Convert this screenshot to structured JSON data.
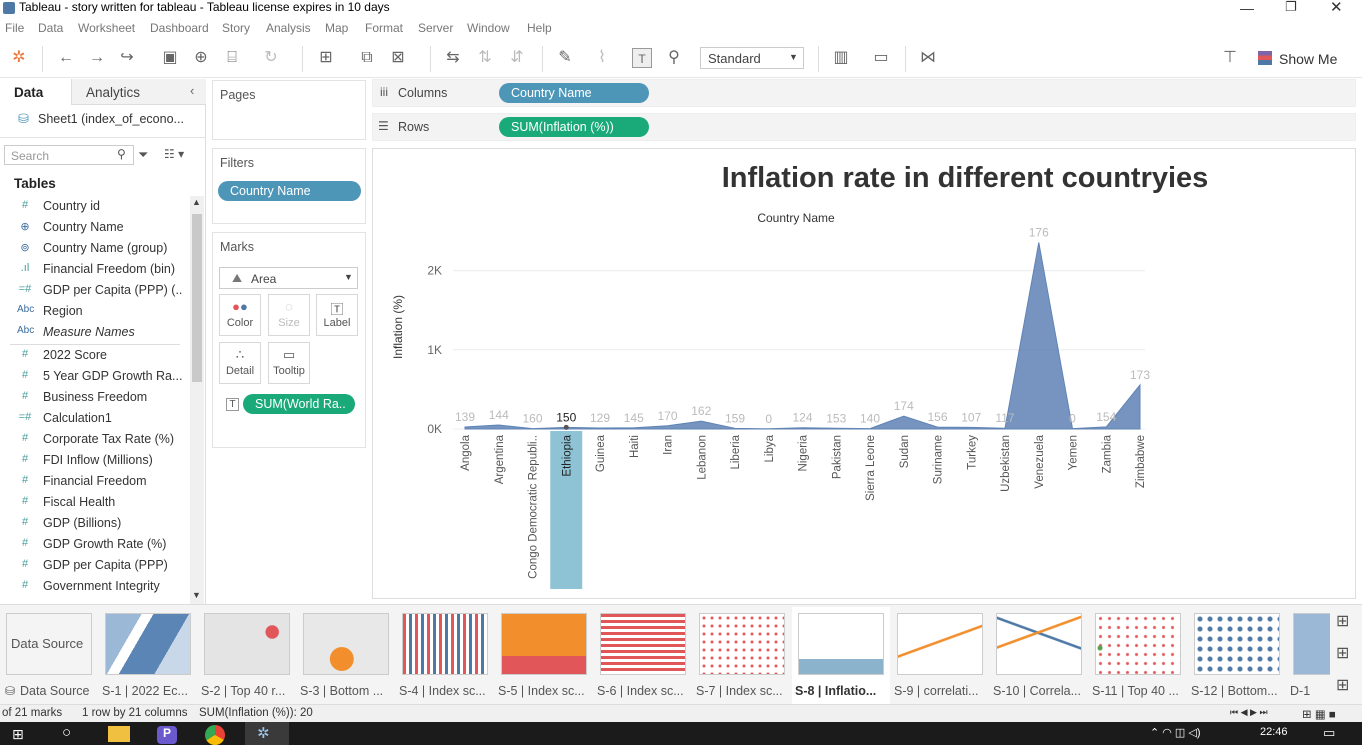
{
  "window": {
    "title": "Tableau - story written for tableau - Tableau license expires in 10 days"
  },
  "menu": [
    "File",
    "Data",
    "Worksheet",
    "Dashboard",
    "Story",
    "Analysis",
    "Map",
    "Format",
    "Server",
    "Window",
    "Help"
  ],
  "toolbar": {
    "fit_mode": "Standard",
    "show_me": "Show Me"
  },
  "left_pane": {
    "tab_data": "Data",
    "tab_analytics": "Analytics",
    "datasource": "Sheet1 (index_of_econo...",
    "search_placeholder": "Search",
    "tables_heading": "Tables",
    "fields": [
      {
        "icon": "#",
        "name": "Country id",
        "italic": false
      },
      {
        "icon": "globe",
        "name": "Country Name",
        "italic": false
      },
      {
        "icon": "group",
        "name": "Country Name (group)",
        "italic": false
      },
      {
        "icon": "bin",
        "name": "Financial Freedom (bin)",
        "italic": false
      },
      {
        "icon": "=#",
        "name": "GDP per Capita (PPP) (...",
        "italic": false
      },
      {
        "icon": "Abc",
        "name": "Region",
        "italic": false
      },
      {
        "icon": "Abc",
        "name": "Measure Names",
        "italic": true
      },
      {
        "icon": "#",
        "name": "2022 Score",
        "italic": false
      },
      {
        "icon": "#",
        "name": "5 Year GDP Growth Ra...",
        "italic": false
      },
      {
        "icon": "#",
        "name": "Business Freedom",
        "italic": false
      },
      {
        "icon": "=#",
        "name": "Calculation1",
        "italic": false
      },
      {
        "icon": "#",
        "name": "Corporate Tax Rate (%)",
        "italic": false
      },
      {
        "icon": "#",
        "name": "FDI Inflow (Millions)",
        "italic": false
      },
      {
        "icon": "#",
        "name": "Financial Freedom",
        "italic": false
      },
      {
        "icon": "#",
        "name": "Fiscal Health",
        "italic": false
      },
      {
        "icon": "#",
        "name": "GDP (Billions)",
        "italic": false
      },
      {
        "icon": "#",
        "name": "GDP Growth Rate (%)",
        "italic": false
      },
      {
        "icon": "#",
        "name": "GDP per Capita (PPP)",
        "italic": false
      },
      {
        "icon": "#",
        "name": "Government Integrity",
        "italic": false
      }
    ]
  },
  "cards": {
    "pages": "Pages",
    "filters": "Filters",
    "filter_pill": "Country Name",
    "marks": "Marks",
    "mark_type": "Area",
    "btn_color": "Color",
    "btn_size": "Size",
    "btn_label": "Label",
    "btn_detail": "Detail",
    "btn_tooltip": "Tooltip",
    "marks_pill": "SUM(World Ra.."
  },
  "shelves": {
    "columns_label": "Columns",
    "columns_pill": "Country Name",
    "rows_label": "Rows",
    "rows_pill": "SUM(Inflation (%))"
  },
  "chart_data": {
    "type": "area",
    "title": "Inflation rate in different countryies",
    "header": "Country Name",
    "ylabel": "Inflation (%)",
    "yticks": [
      "2K",
      "1K",
      "0K"
    ],
    "ylim": [
      0,
      2500
    ],
    "grid": true,
    "highlighted": "Ethiopia",
    "categories": [
      "Angola",
      "Argentina",
      "Congo Democratic Republi..",
      "Ethiopia",
      "Guinea",
      "Haiti",
      "Iran",
      "Lebanon",
      "Liberia",
      "Libya",
      "Nigeria",
      "Pakistan",
      "Sierra Leone",
      "Sudan",
      "Suriname",
      "Turkey",
      "Uzbekistan",
      "Venezuela",
      "Yemen",
      "Zambia",
      "Zimbabwe"
    ],
    "values": [
      25,
      51,
      5,
      20,
      13,
      15,
      40,
      100,
      8,
      3,
      17,
      9,
      5,
      163,
      24,
      20,
      10,
      2355,
      5,
      27,
      557
    ],
    "labels": [
      "139",
      "144",
      "160",
      "150",
      "129",
      "145",
      "170",
      "162",
      "159",
      "0",
      "124",
      "153",
      "140",
      "174",
      "156",
      "107",
      "117",
      "176",
      "0",
      "154",
      "173"
    ],
    "color": "#4f76ad"
  },
  "tabs": [
    {
      "label": "Data Source",
      "thumb": "ds"
    },
    {
      "label": "S-1 | 2022 Ec...",
      "thumb": "map"
    },
    {
      "label": "S-2 | Top 40 r...",
      "thumb": "map2"
    },
    {
      "label": "S-3 | Bottom ...",
      "thumb": "map3"
    },
    {
      "label": "S-4 | Index sc...",
      "thumb": "bars"
    },
    {
      "label": "S-5 | Index sc...",
      "thumb": "tree"
    },
    {
      "label": "S-6 | Index sc...",
      "thumb": "hbars"
    },
    {
      "label": "S-7 | Index sc...",
      "thumb": "dots"
    },
    {
      "label": "S-8 | Inflatio...",
      "thumb": "area"
    },
    {
      "label": "S-9 | correlati...",
      "thumb": "line"
    },
    {
      "label": "S-10 | Correla...",
      "thumb": "line2"
    },
    {
      "label": "S-11 | Top 40 ...",
      "thumb": "dots2"
    },
    {
      "label": "S-12 | Bottom...",
      "thumb": "dots3"
    },
    {
      "label": "D-1",
      "thumb": "map4"
    }
  ],
  "status": {
    "marks": "of 21 marks",
    "rows": "1 row by 21 columns",
    "sum": "SUM(Inflation (%)): 20"
  },
  "taskbar": {
    "time": "22:46"
  }
}
